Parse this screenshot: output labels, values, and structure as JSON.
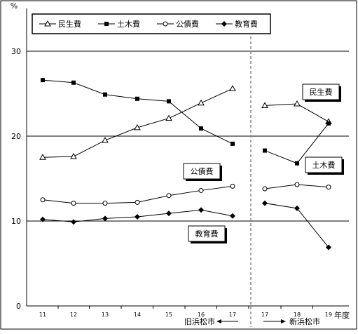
{
  "chart_data": {
    "type": "line",
    "unit_label": "%",
    "x_unit": "年度",
    "yticks": [
      0,
      10,
      20,
      30
    ],
    "ylim": [
      0,
      33
    ],
    "grid": "horizontal",
    "legend_position": "top-left",
    "legend": [
      {
        "name": "民生費",
        "marker": "triangle-open"
      },
      {
        "name": "土木費",
        "marker": "square-filled"
      },
      {
        "name": "公債費",
        "marker": "circle-open"
      },
      {
        "name": "教育費",
        "marker": "diamond-filled"
      }
    ],
    "panels": [
      {
        "label": "旧浜松市",
        "arrow": "←",
        "x": [
          "11",
          "12",
          "13",
          "14",
          "15",
          "16",
          "17"
        ],
        "series": [
          {
            "name": "民生費",
            "values": [
              17.5,
              17.6,
              19.5,
              21.0,
              22.1,
              23.9,
              25.6
            ]
          },
          {
            "name": "土木費",
            "values": [
              26.6,
              26.3,
              24.9,
              24.4,
              24.1,
              20.9,
              19.1
            ]
          },
          {
            "name": "公債費",
            "values": [
              12.5,
              12.1,
              12.1,
              12.2,
              13.0,
              13.6,
              14.1
            ]
          },
          {
            "name": "教育費",
            "values": [
              10.2,
              9.9,
              10.3,
              10.5,
              10.9,
              11.3,
              10.6
            ]
          }
        ]
      },
      {
        "label": "新浜松市",
        "arrow": "→",
        "x": [
          "17",
          "18",
          "19"
        ],
        "series": [
          {
            "name": "民生費",
            "values": [
              23.6,
              23.8,
              21.7
            ]
          },
          {
            "name": "土木費",
            "values": [
              18.3,
              16.8,
              21.5
            ]
          },
          {
            "name": "公債費",
            "values": [
              13.8,
              14.3,
              14.0
            ]
          },
          {
            "name": "教育費",
            "values": [
              12.1,
              11.5,
              6.9
            ]
          }
        ]
      }
    ],
    "annotations": [
      {
        "text": "民生費",
        "series": "民生費"
      },
      {
        "text": "土木費",
        "series": "土木費"
      },
      {
        "text": "公債費",
        "series": "公債費"
      },
      {
        "text": "教育費",
        "series": "教育費"
      }
    ]
  }
}
